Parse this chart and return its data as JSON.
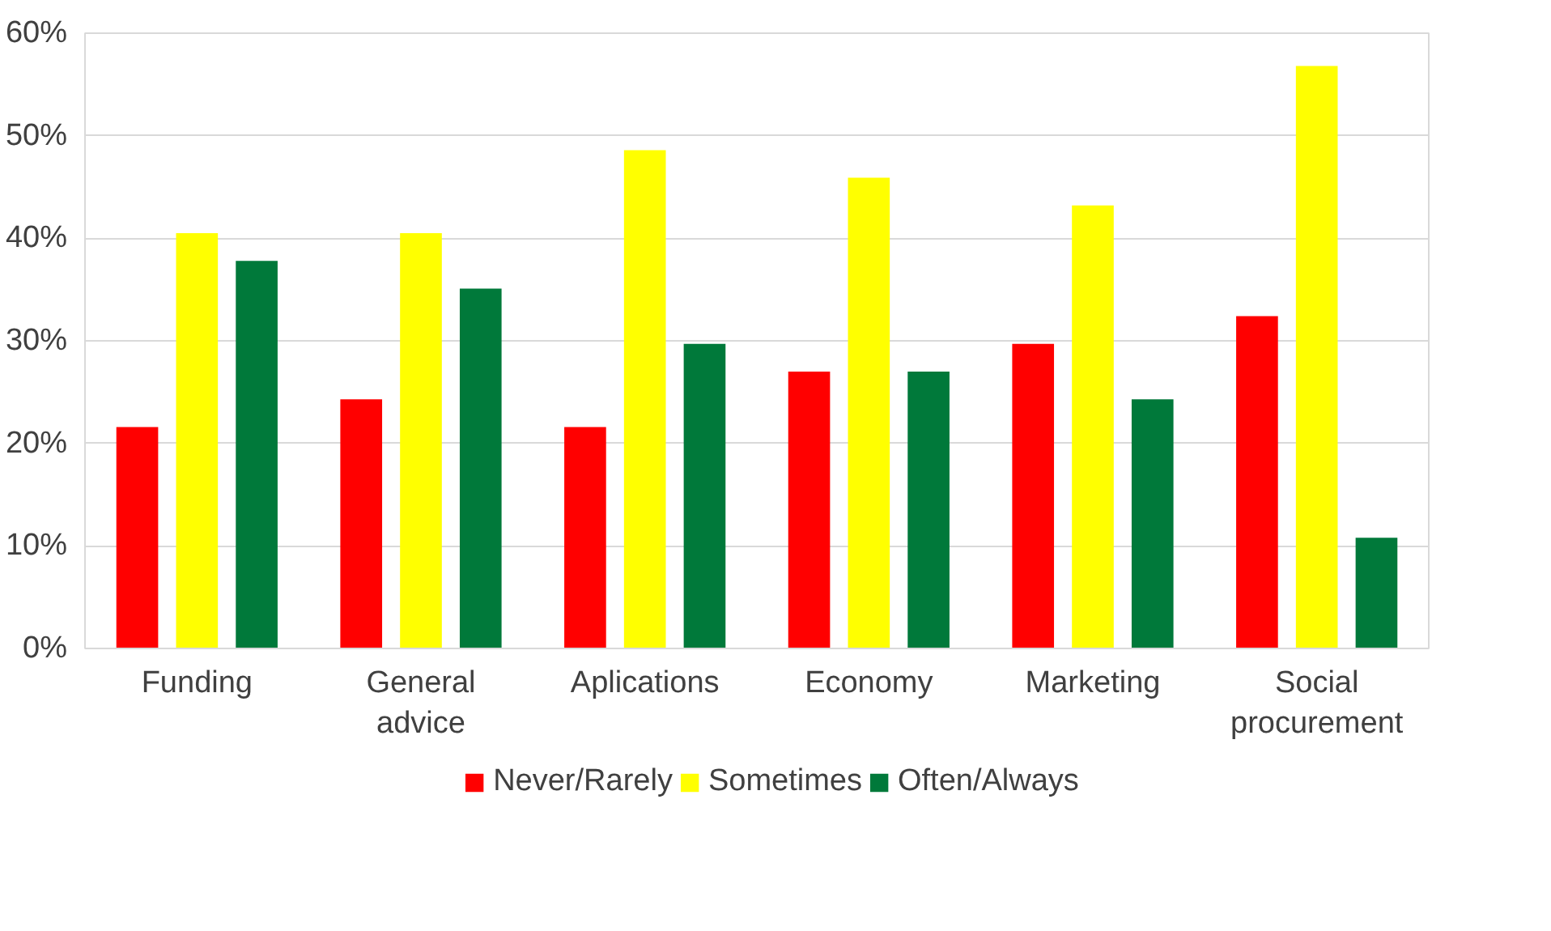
{
  "chart_data": {
    "type": "bar",
    "categories": [
      "Funding",
      "General\nadvice",
      "Aplications",
      "Economy",
      "Marketing",
      "Social\nprocurement"
    ],
    "series": [
      {
        "name": "Never/Rarely",
        "color": "#ff0000",
        "values": [
          21.6,
          24.3,
          21.6,
          27.0,
          29.7,
          32.4
        ]
      },
      {
        "name": "Sometimes",
        "color": "#ffff00",
        "values": [
          40.5,
          40.5,
          48.6,
          45.9,
          43.2,
          56.8
        ]
      },
      {
        "name": "Often/Always",
        "color": "#00793a",
        "values": [
          37.8,
          35.1,
          29.7,
          27.0,
          24.3,
          10.8
        ]
      }
    ],
    "ylim": [
      0,
      60
    ],
    "yticks": [
      {
        "value": 0,
        "label": "0%"
      },
      {
        "value": 10,
        "label": "10%"
      },
      {
        "value": 20,
        "label": "20%"
      },
      {
        "value": 30,
        "label": "30%"
      },
      {
        "value": 40,
        "label": "40%"
      },
      {
        "value": 50,
        "label": "50%"
      },
      {
        "value": 60,
        "label": "60%"
      }
    ],
    "grid": "y",
    "legend": "bottom"
  }
}
